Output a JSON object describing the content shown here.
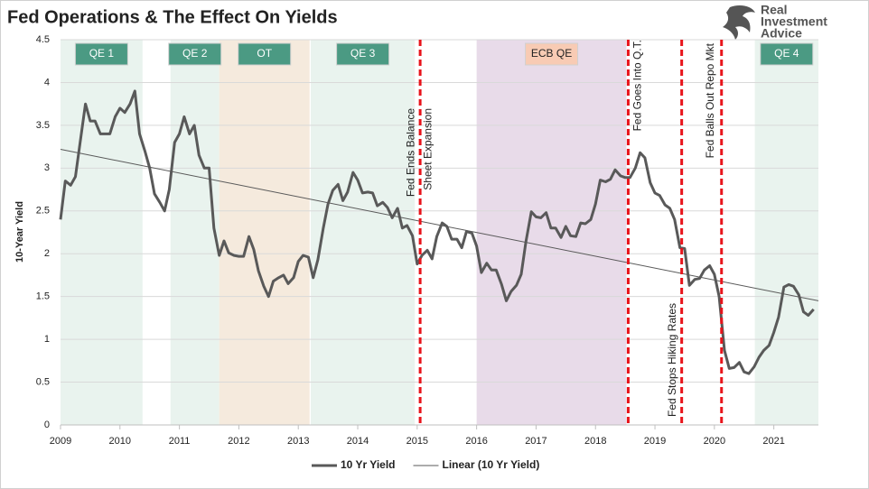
{
  "chart_data": {
    "type": "line",
    "title": "Fed Operations & The Effect On Yields",
    "logo": [
      "Real",
      "Investment",
      "Advice"
    ],
    "ylabel": "10-Year Yield",
    "xlim": [
      2009,
      2021.75
    ],
    "xticks": [
      2009,
      2010,
      2011,
      2012,
      2013,
      2014,
      2015,
      2016,
      2017,
      2018,
      2019,
      2020,
      2021
    ],
    "ylim": [
      0,
      4.5
    ],
    "yticks": [
      0,
      0.5,
      1,
      1.5,
      2,
      2.5,
      3,
      3.5,
      4,
      4.5
    ],
    "grid": true,
    "legend": "bottom",
    "regions": [
      {
        "label": "QE 1",
        "start": 2009,
        "end": 2010.38,
        "color": "#e9f3ee",
        "label_color": "#4b9a83",
        "label_text_color": "#ffffff"
      },
      {
        "label": "QE 2",
        "start": 2010.85,
        "end": 2011.67,
        "color": "#e9f3ee",
        "label_color": "#4b9a83",
        "label_text_color": "#ffffff"
      },
      {
        "label": "OT",
        "start": 2011.67,
        "end": 2013.19,
        "color": "#f5eadd",
        "label_color": "#4b9a83",
        "label_text_color": "#ffffff"
      },
      {
        "label": "QE 3",
        "start": 2013.21,
        "end": 2014.96,
        "color": "#e9f3ee",
        "label_color": "#4b9a83",
        "label_text_color": "#ffffff"
      },
      {
        "label": "ECB QE",
        "start": 2016.0,
        "end": 2018.52,
        "color": "#e8dbe9",
        "label_color": "#f8cbb4",
        "label_text_color": "#222222"
      },
      {
        "label": "QE 4",
        "start": 2020.68,
        "end": 2021.75,
        "color": "#e9f3ee",
        "label_color": "#4b9a83",
        "label_text_color": "#ffffff"
      }
    ],
    "events": [
      {
        "x": 2015.05,
        "label": [
          "Fed Ends Balance",
          "Sheet Expansion"
        ]
      },
      {
        "x": 2018.55,
        "label": [
          "Fed Goes Into Q.T."
        ]
      },
      {
        "x": 2019.45,
        "label": [
          "Fed Stops Hiking Rates"
        ]
      },
      {
        "x": 2020.12,
        "label": [
          "Fed Balls Out Repo Mkt"
        ]
      }
    ],
    "event_color": "#e8141b",
    "series": [
      {
        "name": "10 Yr Yield",
        "color": "#595959",
        "x": [
          2009,
          2009.08,
          2009.17,
          2009.25,
          2009.33,
          2009.42,
          2009.5,
          2009.58,
          2009.67,
          2009.75,
          2009.83,
          2009.92,
          2010,
          2010.08,
          2010.17,
          2010.25,
          2010.33,
          2010.42,
          2010.5,
          2010.58,
          2010.67,
          2010.75,
          2010.83,
          2010.92,
          2011,
          2011.08,
          2011.17,
          2011.25,
          2011.33,
          2011.42,
          2011.5,
          2011.58,
          2011.67,
          2011.75,
          2011.83,
          2011.92,
          2012,
          2012.08,
          2012.17,
          2012.25,
          2012.33,
          2012.42,
          2012.5,
          2012.58,
          2012.67,
          2012.75,
          2012.83,
          2012.92,
          2013,
          2013.08,
          2013.17,
          2013.25,
          2013.33,
          2013.42,
          2013.5,
          2013.58,
          2013.67,
          2013.75,
          2013.83,
          2013.92,
          2014,
          2014.08,
          2014.17,
          2014.25,
          2014.33,
          2014.42,
          2014.5,
          2014.58,
          2014.67,
          2014.75,
          2014.83,
          2014.92,
          2015,
          2015.08,
          2015.17,
          2015.25,
          2015.33,
          2015.42,
          2015.5,
          2015.58,
          2015.67,
          2015.75,
          2015.83,
          2015.92,
          2016,
          2016.08,
          2016.17,
          2016.25,
          2016.33,
          2016.42,
          2016.5,
          2016.58,
          2016.67,
          2016.75,
          2016.83,
          2016.92,
          2017,
          2017.08,
          2017.17,
          2017.25,
          2017.33,
          2017.42,
          2017.5,
          2017.58,
          2017.67,
          2017.75,
          2017.83,
          2017.92,
          2018,
          2018.08,
          2018.17,
          2018.25,
          2018.33,
          2018.42,
          2018.5,
          2018.58,
          2018.67,
          2018.75,
          2018.83,
          2018.92,
          2019,
          2019.08,
          2019.17,
          2019.25,
          2019.33,
          2019.42,
          2019.5,
          2019.58,
          2019.67,
          2019.75,
          2019.83,
          2019.92,
          2020,
          2020.08,
          2020.17,
          2020.25,
          2020.33,
          2020.42,
          2020.5,
          2020.58,
          2020.67,
          2020.75,
          2020.83,
          2020.92,
          2021,
          2021.08,
          2021.17,
          2021.25,
          2021.33,
          2021.42,
          2021.5,
          2021.58,
          2021.67
        ],
        "values": [
          2.4,
          2.85,
          2.8,
          2.9,
          3.3,
          3.75,
          3.55,
          3.55,
          3.4,
          3.4,
          3.4,
          3.6,
          3.7,
          3.65,
          3.75,
          3.9,
          3.4,
          3.2,
          3.0,
          2.7,
          2.6,
          2.5,
          2.75,
          3.3,
          3.4,
          3.6,
          3.4,
          3.5,
          3.15,
          3.0,
          3.0,
          2.3,
          1.98,
          2.15,
          2.01,
          1.98,
          1.97,
          1.97,
          2.2,
          2.05,
          1.8,
          1.62,
          1.5,
          1.68,
          1.72,
          1.75,
          1.65,
          1.72,
          1.91,
          1.98,
          1.96,
          1.72,
          1.93,
          2.3,
          2.58,
          2.74,
          2.81,
          2.62,
          2.72,
          2.95,
          2.86,
          2.71,
          2.72,
          2.71,
          2.56,
          2.6,
          2.54,
          2.42,
          2.53,
          2.3,
          2.33,
          2.21,
          1.88,
          1.98,
          2.04,
          1.94,
          2.2,
          2.36,
          2.32,
          2.17,
          2.17,
          2.07,
          2.26,
          2.24,
          2.09,
          1.78,
          1.89,
          1.81,
          1.81,
          1.64,
          1.45,
          1.56,
          1.63,
          1.76,
          2.14,
          2.49,
          2.43,
          2.42,
          2.48,
          2.3,
          2.3,
          2.19,
          2.32,
          2.21,
          2.2,
          2.36,
          2.35,
          2.4,
          2.58,
          2.86,
          2.84,
          2.87,
          2.98,
          2.91,
          2.89,
          2.89,
          3.0,
          3.18,
          3.12,
          2.83,
          2.71,
          2.68,
          2.57,
          2.53,
          2.4,
          2.07,
          2.06,
          1.63,
          1.7,
          1.71,
          1.81,
          1.86,
          1.76,
          1.5,
          0.87,
          0.66,
          0.67,
          0.73,
          0.62,
          0.6,
          0.68,
          0.79,
          0.87,
          0.93,
          1.08,
          1.26,
          1.61,
          1.64,
          1.62,
          1.52,
          1.32,
          1.28,
          1.35
        ]
      },
      {
        "name": "Linear (10 Yr Yield)",
        "color": "#595959",
        "x": [
          2009,
          2021.75
        ],
        "values": [
          3.22,
          1.45
        ]
      }
    ]
  }
}
